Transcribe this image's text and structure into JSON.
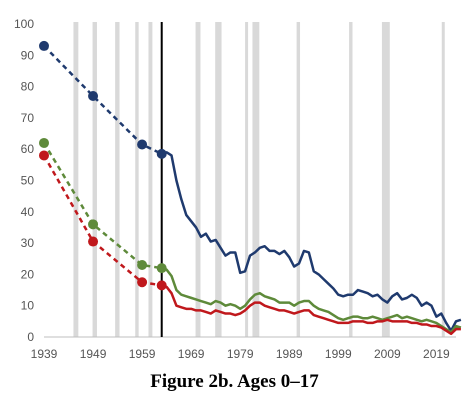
{
  "caption": "Figure 2b. Ages 0–17",
  "chart_data": {
    "type": "line",
    "title": "Figure 2b. Ages 0–17",
    "xlabel": "",
    "ylabel": "",
    "xlim": [
      1939,
      2023
    ],
    "ylim": [
      0,
      100
    ],
    "y_ticks": [
      0,
      10,
      20,
      30,
      40,
      50,
      60,
      70,
      80,
      90,
      100
    ],
    "x_ticks": [
      1939,
      1949,
      1959,
      1969,
      1979,
      1989,
      1999,
      2009,
      2019
    ],
    "grid": false,
    "legend": "none",
    "vertical_marker_year": 1963,
    "recession_shading": [
      [
        1945,
        1946
      ],
      [
        1948.9,
        1949.8
      ],
      [
        1953.5,
        1954.4
      ],
      [
        1957.6,
        1958.3
      ],
      [
        1960.3,
        1961.1
      ],
      [
        1969.9,
        1970.9
      ],
      [
        1973.9,
        1975.2
      ],
      [
        1980.0,
        1980.6
      ],
      [
        1981.5,
        1982.9
      ],
      [
        1990.5,
        1991.2
      ],
      [
        2001.2,
        2001.9
      ],
      [
        2007.9,
        2009.5
      ],
      [
        2020.1,
        2020.4
      ]
    ],
    "series": [
      {
        "color": "#1f3a6e",
        "dashed_points": [
          [
            1939,
            93
          ],
          [
            1949,
            77
          ],
          [
            1959,
            61.5
          ],
          [
            1963,
            58.5
          ]
        ],
        "solid": [
          [
            1963,
            58.5
          ],
          [
            1964,
            59
          ],
          [
            1965,
            58
          ],
          [
            1966,
            50
          ],
          [
            1967,
            44
          ],
          [
            1968,
            39
          ],
          [
            1969,
            37
          ],
          [
            1970,
            35
          ],
          [
            1971,
            32
          ],
          [
            1972,
            33
          ],
          [
            1973,
            30.5
          ],
          [
            1974,
            31
          ],
          [
            1975,
            28.5
          ],
          [
            1976,
            26
          ],
          [
            1977,
            27
          ],
          [
            1978,
            27
          ],
          [
            1979,
            20.5
          ],
          [
            1980,
            21
          ],
          [
            1981,
            26
          ],
          [
            1982,
            27
          ],
          [
            1983,
            28.5
          ],
          [
            1984,
            29
          ],
          [
            1985,
            27.5
          ],
          [
            1986,
            27.5
          ],
          [
            1987,
            26.5
          ],
          [
            1988,
            27.5
          ],
          [
            1989,
            25.5
          ],
          [
            1990,
            22.5
          ],
          [
            1991,
            23.5
          ],
          [
            1992,
            27.5
          ],
          [
            1993,
            27
          ],
          [
            1994,
            21
          ],
          [
            1995,
            20
          ],
          [
            1996,
            18.5
          ],
          [
            1997,
            17
          ],
          [
            1998,
            15.5
          ],
          [
            1999,
            13.5
          ],
          [
            2000,
            13
          ],
          [
            2001,
            13.5
          ],
          [
            2002,
            13.5
          ],
          [
            2003,
            15
          ],
          [
            2004,
            14.5
          ],
          [
            2005,
            14
          ],
          [
            2006,
            13
          ],
          [
            2007,
            13.5
          ],
          [
            2008,
            12
          ],
          [
            2009,
            11
          ],
          [
            2010,
            13
          ],
          [
            2011,
            14
          ],
          [
            2012,
            12
          ],
          [
            2013,
            12.5
          ],
          [
            2014,
            13.5
          ],
          [
            2015,
            12.5
          ],
          [
            2016,
            10
          ],
          [
            2017,
            11
          ],
          [
            2018,
            10
          ],
          [
            2019,
            6.5
          ],
          [
            2020,
            7.5
          ],
          [
            2021,
            4.5
          ],
          [
            2022,
            2
          ],
          [
            2023,
            5
          ],
          [
            2024,
            5.5
          ]
        ]
      },
      {
        "color": "#5e8a3a",
        "dashed_points": [
          [
            1939,
            62
          ],
          [
            1949,
            36
          ],
          [
            1959,
            23
          ],
          [
            1963,
            22
          ]
        ],
        "solid": [
          [
            1963,
            22
          ],
          [
            1964,
            21.5
          ],
          [
            1965,
            19.5
          ],
          [
            1966,
            15
          ],
          [
            1967,
            13.5
          ],
          [
            1968,
            13
          ],
          [
            1969,
            12.5
          ],
          [
            1970,
            12
          ],
          [
            1971,
            11.5
          ],
          [
            1972,
            11
          ],
          [
            1973,
            10.5
          ],
          [
            1974,
            11.5
          ],
          [
            1975,
            11
          ],
          [
            1976,
            10
          ],
          [
            1977,
            10.5
          ],
          [
            1978,
            10
          ],
          [
            1979,
            9
          ],
          [
            1980,
            10
          ],
          [
            1981,
            12
          ],
          [
            1982,
            13.5
          ],
          [
            1983,
            14
          ],
          [
            1984,
            13
          ],
          [
            1985,
            12.5
          ],
          [
            1986,
            12
          ],
          [
            1987,
            11
          ],
          [
            1988,
            11
          ],
          [
            1989,
            11
          ],
          [
            1990,
            10
          ],
          [
            1991,
            11
          ],
          [
            1992,
            11.5
          ],
          [
            1993,
            11.5
          ],
          [
            1994,
            10
          ],
          [
            1995,
            9
          ],
          [
            1996,
            8.5
          ],
          [
            1997,
            8
          ],
          [
            1998,
            7
          ],
          [
            1999,
            6
          ],
          [
            2000,
            5.5
          ],
          [
            2001,
            6
          ],
          [
            2002,
            6.5
          ],
          [
            2003,
            6.5
          ],
          [
            2004,
            6
          ],
          [
            2005,
            6
          ],
          [
            2006,
            6.5
          ],
          [
            2007,
            6
          ],
          [
            2008,
            5.5
          ],
          [
            2009,
            6
          ],
          [
            2010,
            6.5
          ],
          [
            2011,
            7
          ],
          [
            2012,
            6
          ],
          [
            2013,
            6.5
          ],
          [
            2014,
            6
          ],
          [
            2015,
            5.5
          ],
          [
            2016,
            5
          ],
          [
            2017,
            5.5
          ],
          [
            2018,
            5
          ],
          [
            2019,
            4.5
          ],
          [
            2020,
            3.5
          ],
          [
            2021,
            2.5
          ],
          [
            2022,
            1.5
          ],
          [
            2023,
            3.5
          ],
          [
            2024,
            3
          ]
        ]
      },
      {
        "color": "#c0181c",
        "dashed_points": [
          [
            1939,
            58
          ],
          [
            1949,
            30.5
          ],
          [
            1959,
            17.5
          ],
          [
            1963,
            16.5
          ]
        ],
        "solid": [
          [
            1963,
            16.5
          ],
          [
            1964,
            16
          ],
          [
            1965,
            14
          ],
          [
            1966,
            10
          ],
          [
            1967,
            9.5
          ],
          [
            1968,
            9
          ],
          [
            1969,
            9
          ],
          [
            1970,
            8.5
          ],
          [
            1971,
            8.5
          ],
          [
            1972,
            8
          ],
          [
            1973,
            7.5
          ],
          [
            1974,
            8.5
          ],
          [
            1975,
            8
          ],
          [
            1976,
            7.5
          ],
          [
            1977,
            7.5
          ],
          [
            1978,
            7
          ],
          [
            1979,
            7.5
          ],
          [
            1980,
            8.5
          ],
          [
            1981,
            10
          ],
          [
            1982,
            11
          ],
          [
            1983,
            11
          ],
          [
            1984,
            10
          ],
          [
            1985,
            9.5
          ],
          [
            1986,
            9
          ],
          [
            1987,
            8.5
          ],
          [
            1988,
            8.5
          ],
          [
            1989,
            8
          ],
          [
            1990,
            7.5
          ],
          [
            1991,
            8
          ],
          [
            1992,
            8.5
          ],
          [
            1993,
            8.5
          ],
          [
            1994,
            7
          ],
          [
            1995,
            6.5
          ],
          [
            1996,
            6
          ],
          [
            1997,
            5.5
          ],
          [
            1998,
            5
          ],
          [
            1999,
            4.5
          ],
          [
            2000,
            4.5
          ],
          [
            2001,
            4.5
          ],
          [
            2002,
            5
          ],
          [
            2003,
            5
          ],
          [
            2004,
            5
          ],
          [
            2005,
            4.5
          ],
          [
            2006,
            4.5
          ],
          [
            2007,
            5
          ],
          [
            2008,
            5
          ],
          [
            2009,
            5.5
          ],
          [
            2010,
            5
          ],
          [
            2011,
            5
          ],
          [
            2012,
            5
          ],
          [
            2013,
            5
          ],
          [
            2014,
            4.5
          ],
          [
            2015,
            4.5
          ],
          [
            2016,
            4
          ],
          [
            2017,
            4
          ],
          [
            2018,
            3.5
          ],
          [
            2019,
            3.5
          ],
          [
            2020,
            3
          ],
          [
            2021,
            2
          ],
          [
            2022,
            1
          ],
          [
            2023,
            2.5
          ],
          [
            2024,
            2.5
          ]
        ]
      }
    ]
  }
}
